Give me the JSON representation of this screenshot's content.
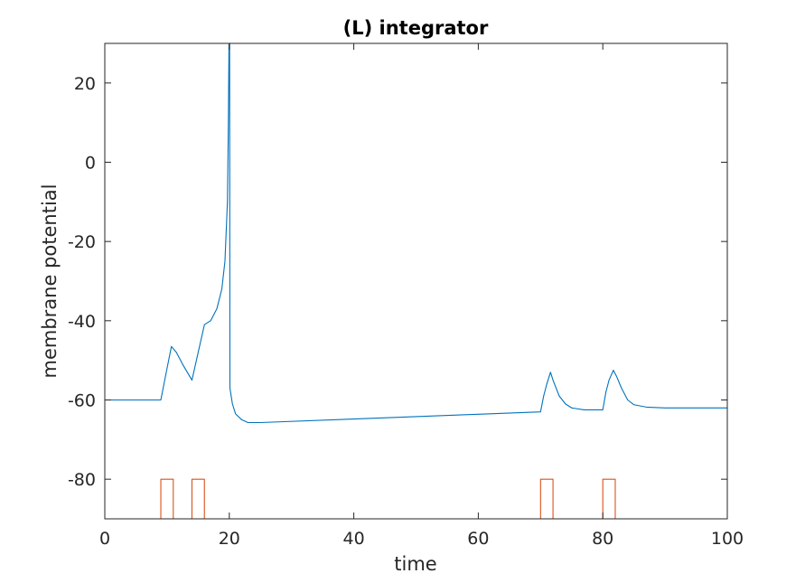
{
  "chart_data": {
    "type": "line",
    "title": "(L) integrator",
    "xlabel": "time",
    "ylabel": "membrane potential",
    "xlim": [
      0,
      100
    ],
    "ylim": [
      -90,
      30
    ],
    "xticks": [
      0,
      20,
      40,
      60,
      80,
      100
    ],
    "yticks": [
      -80,
      -60,
      -40,
      -20,
      0,
      20
    ],
    "grid": false,
    "series": [
      {
        "color": "#0072BD",
        "points": [
          [
            0,
            -60
          ],
          [
            9,
            -60
          ],
          [
            10,
            -52
          ],
          [
            10.7,
            -46.5
          ],
          [
            11.5,
            -48
          ],
          [
            12.5,
            -51
          ],
          [
            14,
            -55
          ],
          [
            15,
            -48
          ],
          [
            16,
            -41
          ],
          [
            17,
            -40
          ],
          [
            18,
            -37
          ],
          [
            18.8,
            -32
          ],
          [
            19.3,
            -25
          ],
          [
            19.7,
            -10
          ],
          [
            19.85,
            10
          ],
          [
            19.95,
            30
          ],
          [
            20.05,
            30
          ],
          [
            20.1,
            -57
          ],
          [
            20.5,
            -61
          ],
          [
            21,
            -63.5
          ],
          [
            22,
            -65
          ],
          [
            23,
            -65.7
          ],
          [
            25,
            -65.7
          ],
          [
            40,
            -64.8
          ],
          [
            60,
            -63.6
          ],
          [
            70,
            -63
          ],
          [
            70.5,
            -59
          ],
          [
            71,
            -56
          ],
          [
            71.6,
            -53
          ],
          [
            72,
            -55
          ],
          [
            73,
            -59
          ],
          [
            74,
            -61
          ],
          [
            75,
            -62
          ],
          [
            77,
            -62.5
          ],
          [
            80,
            -62.5
          ],
          [
            80.5,
            -58
          ],
          [
            81,
            -55
          ],
          [
            81.7,
            -52.5
          ],
          [
            82.2,
            -54
          ],
          [
            83,
            -57
          ],
          [
            84,
            -60
          ],
          [
            85,
            -61.2
          ],
          [
            87,
            -61.8
          ],
          [
            90,
            -62
          ],
          [
            100,
            -62
          ]
        ]
      },
      {
        "color": "#D95319",
        "points": [
          [
            0,
            -90
          ],
          [
            9,
            -90
          ],
          [
            9,
            -80
          ],
          [
            11,
            -80
          ],
          [
            11,
            -90
          ],
          [
            14,
            -90
          ],
          [
            14,
            -80
          ],
          [
            16,
            -80
          ],
          [
            16,
            -90
          ],
          [
            70,
            -90
          ],
          [
            70,
            -80
          ],
          [
            72,
            -80
          ],
          [
            72,
            -90
          ],
          [
            80,
            -90
          ],
          [
            80,
            -80
          ],
          [
            82,
            -80
          ],
          [
            82,
            -90
          ],
          [
            100,
            -90
          ]
        ]
      }
    ]
  }
}
